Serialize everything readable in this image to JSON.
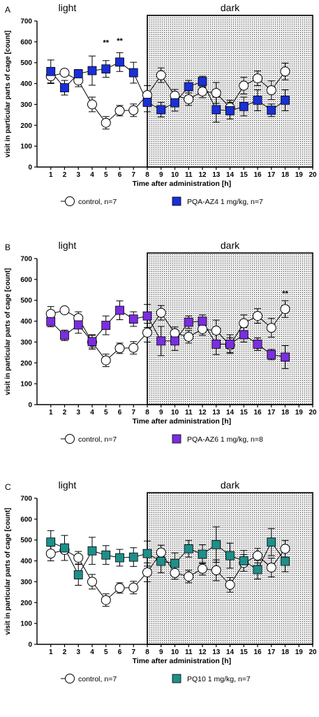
{
  "chart_data": [
    {
      "type": "line",
      "panel_label": "A",
      "light_label": "light",
      "dark_label": "dark",
      "xlabel": "Time after administration [h]",
      "ylabel": "visit in particular parts of cage [count]",
      "xlim": [
        0,
        20
      ],
      "ylim": [
        0,
        700
      ],
      "x_ticks": [
        1,
        2,
        3,
        4,
        5,
        6,
        7,
        8,
        9,
        10,
        11,
        12,
        13,
        14,
        15,
        16,
        17,
        18,
        19,
        20
      ],
      "y_ticks": [
        0,
        100,
        200,
        300,
        400,
        500,
        600,
        700
      ],
      "dark_start": 8,
      "dark_end": 20,
      "annotations": [
        {
          "x": 5,
          "y": 585,
          "text": "**"
        },
        {
          "x": 6,
          "y": 592,
          "text": "**"
        }
      ],
      "series": [
        {
          "name": "control, n=7",
          "marker": "circle",
          "color": "#ffffff",
          "x": [
            1,
            2,
            3,
            4,
            5,
            6,
            7,
            8,
            9,
            10,
            11,
            12,
            13,
            14,
            15,
            16,
            17,
            18
          ],
          "values": [
            435,
            452,
            415,
            300,
            212,
            270,
            272,
            345,
            440,
            342,
            325,
            362,
            355,
            285,
            390,
            425,
            368,
            458
          ],
          "err": [
            35,
            15,
            30,
            35,
            30,
            25,
            30,
            45,
            35,
            30,
            30,
            30,
            50,
            35,
            40,
            35,
            45,
            40
          ]
        },
        {
          "name": "PQA-AZ4 1 mg/kg, n=7",
          "marker": "square",
          "color": "#1a2fd6",
          "x": [
            1,
            2,
            3,
            4,
            5,
            6,
            7,
            8,
            9,
            10,
            11,
            12,
            13,
            14,
            15,
            16,
            17,
            18
          ],
          "values": [
            458,
            380,
            447,
            462,
            470,
            503,
            452,
            310,
            275,
            308,
            385,
            410,
            275,
            270,
            290,
            320,
            272,
            320
          ],
          "err": [
            55,
            35,
            20,
            70,
            40,
            45,
            50,
            45,
            35,
            40,
            30,
            25,
            60,
            40,
            45,
            50,
            30,
            50
          ]
        }
      ]
    },
    {
      "type": "line",
      "panel_label": "B",
      "light_label": "light",
      "dark_label": "dark",
      "xlabel": "Time after administration [h]",
      "ylabel": "visit in particular parts of cage [count]",
      "xlim": [
        0,
        20
      ],
      "ylim": [
        0,
        700
      ],
      "x_ticks": [
        1,
        2,
        3,
        4,
        5,
        6,
        7,
        8,
        9,
        10,
        11,
        12,
        13,
        14,
        15,
        16,
        17,
        18,
        19,
        20
      ],
      "y_ticks": [
        0,
        100,
        200,
        300,
        400,
        500,
        600,
        700
      ],
      "dark_start": 8,
      "dark_end": 20,
      "annotations": [
        {
          "x": 18,
          "y": 520,
          "text": "**"
        }
      ],
      "series": [
        {
          "name": "control, n=7",
          "marker": "circle",
          "color": "#ffffff",
          "x": [
            1,
            2,
            3,
            4,
            5,
            6,
            7,
            8,
            9,
            10,
            11,
            12,
            13,
            14,
            15,
            16,
            17,
            18
          ],
          "values": [
            435,
            452,
            415,
            300,
            212,
            270,
            272,
            345,
            440,
            342,
            325,
            362,
            355,
            285,
            390,
            425,
            368,
            458
          ],
          "err": [
            35,
            15,
            30,
            35,
            30,
            25,
            30,
            45,
            35,
            30,
            30,
            30,
            50,
            35,
            40,
            35,
            45,
            40
          ]
        },
        {
          "name": "PQA-AZ6 1 mg/kg, n=8",
          "marker": "square",
          "color": "#7a2ee0",
          "x": [
            1,
            2,
            3,
            4,
            5,
            6,
            7,
            8,
            9,
            10,
            11,
            12,
            13,
            14,
            15,
            16,
            17,
            18
          ],
          "values": [
            398,
            332,
            382,
            302,
            380,
            452,
            410,
            425,
            305,
            305,
            395,
            400,
            290,
            290,
            335,
            290,
            240,
            228
          ],
          "err": [
            25,
            25,
            40,
            30,
            45,
            45,
            35,
            55,
            70,
            45,
            30,
            30,
            50,
            45,
            35,
            30,
            25,
            55
          ]
        }
      ]
    },
    {
      "type": "line",
      "panel_label": "C",
      "light_label": "light",
      "dark_label": "dark",
      "xlabel": "Time after administration [h]",
      "ylabel": "visit in particular parts of cage [count]",
      "xlim": [
        0,
        20
      ],
      "ylim": [
        0,
        700
      ],
      "x_ticks": [
        1,
        2,
        3,
        4,
        5,
        6,
        7,
        8,
        9,
        10,
        11,
        12,
        13,
        14,
        15,
        16,
        17,
        18,
        19,
        20
      ],
      "y_ticks": [
        0,
        100,
        200,
        300,
        400,
        500,
        600,
        700
      ],
      "dark_start": 8,
      "dark_end": 20,
      "annotations": [],
      "series": [
        {
          "name": "control, n=7",
          "marker": "circle",
          "color": "#ffffff",
          "x": [
            1,
            2,
            3,
            4,
            5,
            6,
            7,
            8,
            9,
            10,
            11,
            12,
            13,
            14,
            15,
            16,
            17,
            18
          ],
          "values": [
            435,
            452,
            415,
            300,
            212,
            270,
            272,
            345,
            440,
            342,
            325,
            362,
            355,
            285,
            390,
            425,
            368,
            458
          ],
          "err": [
            35,
            15,
            30,
            35,
            30,
            25,
            30,
            45,
            35,
            30,
            30,
            30,
            50,
            35,
            40,
            35,
            45,
            40
          ]
        },
        {
          "name": "PQ10 1 mg/kg, n=7",
          "marker": "square",
          "color": "#1e8f8a",
          "x": [
            1,
            2,
            3,
            4,
            5,
            6,
            7,
            8,
            9,
            10,
            11,
            12,
            13,
            14,
            15,
            16,
            17,
            18
          ],
          "values": [
            490,
            462,
            333,
            448,
            428,
            415,
            418,
            435,
            398,
            388,
            458,
            432,
            478,
            425,
            400,
            358,
            490,
            398
          ],
          "err": [
            55,
            60,
            50,
            65,
            45,
            40,
            45,
            60,
            55,
            50,
            40,
            45,
            85,
            60,
            50,
            45,
            65,
            50
          ]
        }
      ]
    }
  ]
}
